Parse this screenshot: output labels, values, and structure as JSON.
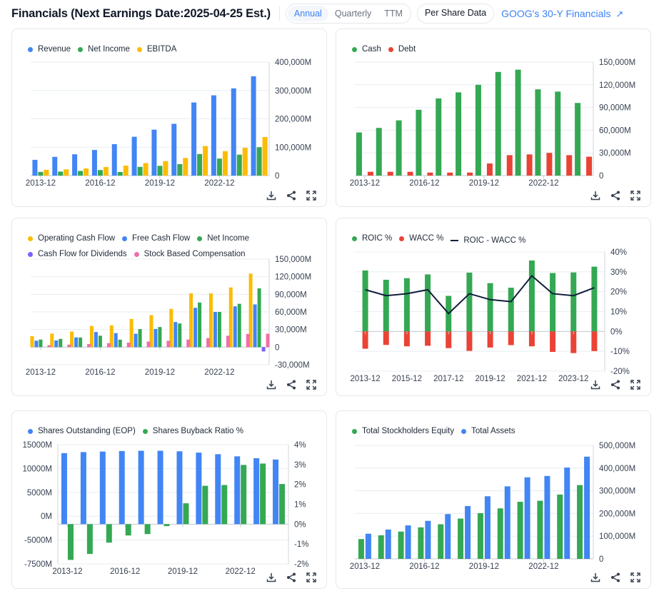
{
  "header": {
    "title": "Financials (Next Earnings Date:2025-04-25 Est.)",
    "periods": [
      "Annual",
      "Quarterly",
      "TTM"
    ],
    "active_period": "Annual",
    "per_share_label": "Per Share Data",
    "link_label": "GOOG's 30-Y Financials",
    "link_icon": "arrow-up-right-icon"
  },
  "toolbar_icons": [
    "download-icon",
    "share-icon",
    "fullscreen-icon"
  ],
  "colors": {
    "blue": "#4285f4",
    "green": "#34a853",
    "yellow": "#fbbc04",
    "red": "#ea4335",
    "purple": "#7b61ff",
    "pink": "#f06eaa",
    "navy": "#111d3c"
  },
  "chart_data": [
    {
      "id": "income",
      "type": "bar",
      "categories": [
        "2013-12",
        "2014-12",
        "2015-12",
        "2016-12",
        "2017-12",
        "2018-12",
        "2019-12",
        "2020-12",
        "2021-12",
        "2022-12",
        "2023-12",
        "2024-12"
      ],
      "x_tick_labels": [
        "2013-12",
        "2016-12",
        "2019-12",
        "2022-12"
      ],
      "y_ticks": [
        "0",
        "100,000M",
        "200,000M",
        "300,000M",
        "400,000M"
      ],
      "ylim": [
        0,
        400000
      ],
      "unit": "M",
      "series": [
        {
          "name": "Revenue",
          "color": "blue",
          "values": [
            55519,
            66001,
            74989,
            90272,
            110855,
            136819,
            161857,
            182527,
            257637,
            282836,
            307394,
            350018
          ]
        },
        {
          "name": "Net Income",
          "color": "green",
          "values": [
            12920,
            14136,
            16348,
            19478,
            12662,
            30736,
            34343,
            40269,
            76033,
            59972,
            73795,
            100118
          ]
        },
        {
          "name": "EBITDA",
          "color": "yellow",
          "values": [
            20000,
            22000,
            25000,
            30000,
            35000,
            44000,
            51000,
            62000,
            104000,
            86000,
            98000,
            136000
          ]
        }
      ]
    },
    {
      "id": "cash-debt",
      "type": "bar",
      "categories": [
        "2013-12",
        "2014-12",
        "2015-12",
        "2016-12",
        "2017-12",
        "2018-12",
        "2019-12",
        "2020-12",
        "2021-12",
        "2022-12",
        "2023-12",
        "2024-12"
      ],
      "x_tick_labels": [
        "2013-12",
        "2016-12",
        "2019-12",
        "2022-12"
      ],
      "y_ticks": [
        "0",
        "30,000M",
        "60,000M",
        "90,000M",
        "120,000M",
        "150,000M"
      ],
      "ylim": [
        0,
        150000
      ],
      "series": [
        {
          "name": "Cash",
          "color": "green",
          "values": [
            57000,
            63000,
            73000,
            87000,
            102000,
            110000,
            120000,
            137000,
            140000,
            114000,
            111000,
            96000
          ]
        },
        {
          "name": "Debt",
          "color": "red",
          "values": [
            5000,
            5000,
            5000,
            4000,
            4000,
            4000,
            16000,
            27000,
            28000,
            30000,
            27000,
            25000
          ]
        }
      ]
    },
    {
      "id": "cash-flow",
      "type": "bar",
      "categories": [
        "2013-12",
        "2014-12",
        "2015-12",
        "2016-12",
        "2017-12",
        "2018-12",
        "2019-12",
        "2020-12",
        "2021-12",
        "2022-12",
        "2023-12",
        "2024-12"
      ],
      "x_tick_labels": [
        "2013-12",
        "2016-12",
        "2019-12",
        "2022-12"
      ],
      "y_ticks": [
        "-30,000M",
        "0",
        "30,000M",
        "60,000M",
        "90,000M",
        "120,000M",
        "150,000M"
      ],
      "ylim": [
        -30000,
        150000
      ],
      "series": [
        {
          "name": "Operating Cash Flow",
          "color": "yellow",
          "values": [
            18700,
            23000,
            26600,
            36000,
            37100,
            48000,
            54500,
            65100,
            91700,
            91500,
            101700,
            125300
          ]
        },
        {
          "name": "Free Cash Flow",
          "color": "blue",
          "values": [
            11000,
            11400,
            16600,
            25800,
            23900,
            22800,
            30900,
            42800,
            67000,
            60000,
            69500,
            72800
          ]
        },
        {
          "name": "Net Income",
          "color": "green",
          "values": [
            12900,
            14100,
            16300,
            19500,
            12700,
            30700,
            34300,
            40300,
            76000,
            60000,
            73800,
            100100
          ]
        },
        {
          "name": "Cash Flow for Dividends",
          "color": "purple",
          "values": [
            0,
            0,
            0,
            0,
            0,
            0,
            0,
            0,
            0,
            0,
            0,
            -7400
          ]
        },
        {
          "name": "Stock Based Compensation",
          "color": "pink",
          "values": [
            3300,
            4200,
            5200,
            6700,
            7700,
            9400,
            10800,
            12900,
            15400,
            19400,
            22500,
            22800
          ]
        }
      ]
    },
    {
      "id": "roic",
      "type": "bar",
      "categories": [
        "2013-12",
        "2014-12",
        "2015-12",
        "2016-12",
        "2017-12",
        "2018-12",
        "2019-12",
        "2020-12",
        "2021-12",
        "2022-12",
        "2023-12",
        "2024-12"
      ],
      "x_tick_labels": [
        "2013-12",
        "2015-12",
        "2017-12",
        "2019-12",
        "2021-12",
        "2023-12"
      ],
      "y_ticks": [
        "-20%",
        "-10%",
        "0%",
        "10%",
        "20%",
        "30%",
        "40%"
      ],
      "ylim": [
        -20,
        40
      ],
      "series": [
        {
          "name": "ROIC %",
          "color": "green",
          "values": [
            30.7,
            26,
            26.8,
            28.7,
            17.9,
            29.6,
            24.3,
            22,
            35.7,
            29.4,
            29.7,
            32.6
          ]
        },
        {
          "name": "WACC %",
          "color": "red",
          "values": [
            -8.7,
            -6.8,
            -7.5,
            -7.2,
            -8.4,
            -9.8,
            -8.1,
            -6.9,
            -7.5,
            -10.3,
            -10.9,
            -9.9
          ]
        },
        {
          "name": "ROIC - WACC %",
          "color": "navy",
          "type": "line",
          "values": [
            21,
            18,
            19,
            21,
            9,
            19,
            16,
            15,
            28,
            19,
            18,
            22
          ]
        }
      ]
    },
    {
      "id": "shares",
      "type": "bar",
      "categories": [
        "2013-12",
        "2014-12",
        "2015-12",
        "2016-12",
        "2017-12",
        "2018-12",
        "2019-12",
        "2020-12",
        "2021-12",
        "2022-12",
        "2023-12",
        "2024-12"
      ],
      "x_tick_labels": [
        "2013-12",
        "2016-12",
        "2019-12",
        "2022-12"
      ],
      "y_ticks_left": [
        "-7500M",
        "-5000M",
        "0M",
        "5000M",
        "10000M",
        "15000M"
      ],
      "y_ticks_right": [
        "-2%",
        "-1%",
        "0%",
        "1%",
        "2%",
        "3%",
        "4%"
      ],
      "ylim_left": [
        -7500,
        15000
      ],
      "ylim_right": [
        -2,
        4
      ],
      "series": [
        {
          "name": "Shares Outstanding (EOP)",
          "color": "blue",
          "axis": "left",
          "values": [
            13400,
            13600,
            13700,
            13800,
            13850,
            13850,
            13750,
            13500,
            13200,
            12800,
            12450,
            12200
          ]
        },
        {
          "name": "Shares Buyback Ratio %",
          "color": "green",
          "axis": "right",
          "values": [
            -1.8,
            -1.5,
            -0.93,
            -0.57,
            -0.5,
            -0.1,
            1.05,
            1.93,
            1.97,
            2.98,
            3.05,
            2.02
          ]
        }
      ]
    },
    {
      "id": "equity-assets",
      "type": "bar",
      "categories": [
        "2013-12",
        "2014-12",
        "2015-12",
        "2016-12",
        "2017-12",
        "2018-12",
        "2019-12",
        "2020-12",
        "2021-12",
        "2022-12",
        "2023-12",
        "2024-12"
      ],
      "x_tick_labels": [
        "2013-12",
        "2016-12",
        "2019-12",
        "2022-12"
      ],
      "y_ticks": [
        "0",
        "100,000M",
        "200,000M",
        "300,000M",
        "400,000M",
        "500,000M"
      ],
      "ylim": [
        0,
        500000
      ],
      "series": [
        {
          "name": "Total Stockholders Equity",
          "color": "green",
          "values": [
            87300,
            104000,
            120300,
            139000,
            152500,
            177600,
            201400,
            222500,
            251600,
            256100,
            283400,
            325100
          ]
        },
        {
          "name": "Total Assets",
          "color": "blue",
          "values": [
            110900,
            129200,
            147500,
            167500,
            197300,
            232800,
            275900,
            319600,
            359300,
            365300,
            402400,
            450300
          ]
        }
      ]
    }
  ]
}
